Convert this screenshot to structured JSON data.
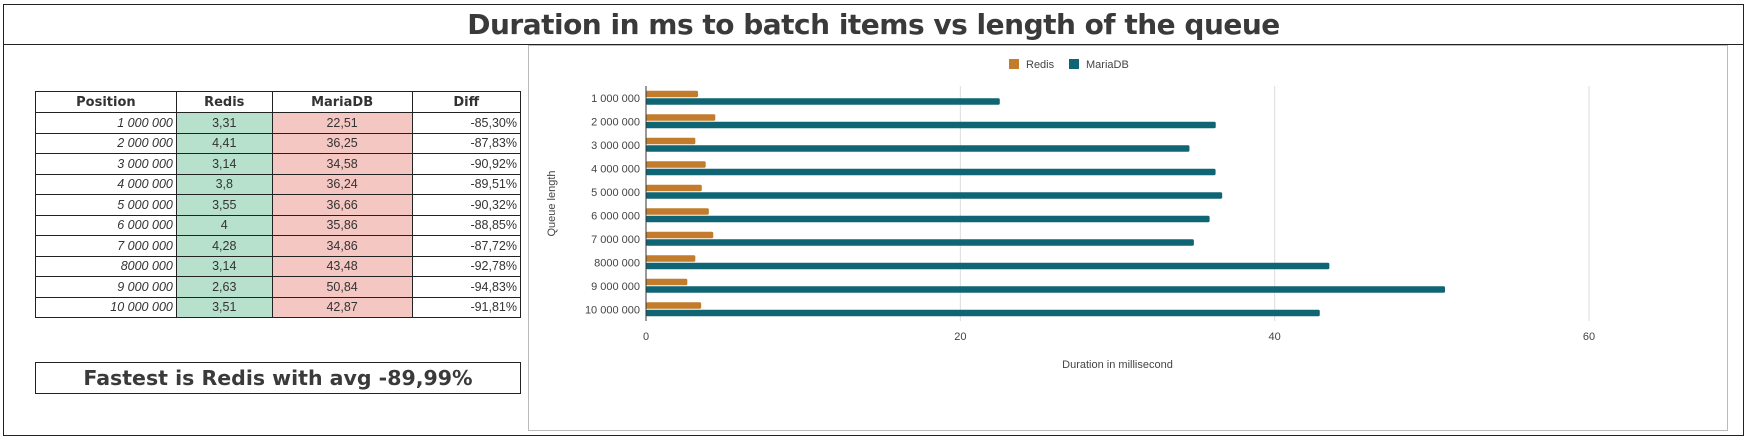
{
  "page": {
    "title": "Duration in ms to batch items vs length of the queue"
  },
  "table": {
    "headers": [
      "Position",
      "Redis",
      "MariaDB",
      "Diff"
    ],
    "rows": [
      [
        "1 000 000",
        "3,31",
        "22,51",
        "-85,30%"
      ],
      [
        "2 000 000",
        "4,41",
        "36,25",
        "-87,83%"
      ],
      [
        "3 000 000",
        "3,14",
        "34,58",
        "-90,92%"
      ],
      [
        "4 000 000",
        "3,8",
        "36,24",
        "-89,51%"
      ],
      [
        "5 000 000",
        "3,55",
        "36,66",
        "-90,32%"
      ],
      [
        "6 000 000",
        "4",
        "35,86",
        "-88,85%"
      ],
      [
        "7 000 000",
        "4,28",
        "34,86",
        "-87,72%"
      ],
      [
        "8000 000",
        "3,14",
        "43,48",
        "-92,78%"
      ],
      [
        "9 000 000",
        "2,63",
        "50,84",
        "-94,83%"
      ],
      [
        "10 000 000",
        "3,51",
        "42,87",
        "-91,81%"
      ]
    ],
    "colors": {
      "redis_cell": "#b7e1cd",
      "mariadb_cell": "#f4c7c3"
    }
  },
  "summary": {
    "text": "Fastest is Redis with avg -89,99%"
  },
  "chart_data": {
    "type": "bar",
    "orientation": "horizontal",
    "categories": [
      "1 000 000",
      "2 000 000",
      "3 000 000",
      "4 000 000",
      "5 000 000",
      "6 000 000",
      "7 000 000",
      "8000 000",
      "9 000 000",
      "10 000 000"
    ],
    "series": [
      {
        "name": "Redis",
        "color": "#c27c2c",
        "values": [
          3.31,
          4.41,
          3.14,
          3.8,
          3.55,
          4,
          4.28,
          3.14,
          2.63,
          3.51
        ]
      },
      {
        "name": "MariaDB",
        "color": "#0f6574",
        "values": [
          22.51,
          36.25,
          34.58,
          36.24,
          36.66,
          35.86,
          34.86,
          43.48,
          50.84,
          42.87
        ]
      }
    ],
    "xlabel": "Duration in millisecond",
    "ylabel": "Queue length",
    "xlim": [
      0,
      60
    ],
    "xticks": [
      0,
      20,
      40,
      60
    ],
    "grid": true,
    "legend": "top"
  }
}
